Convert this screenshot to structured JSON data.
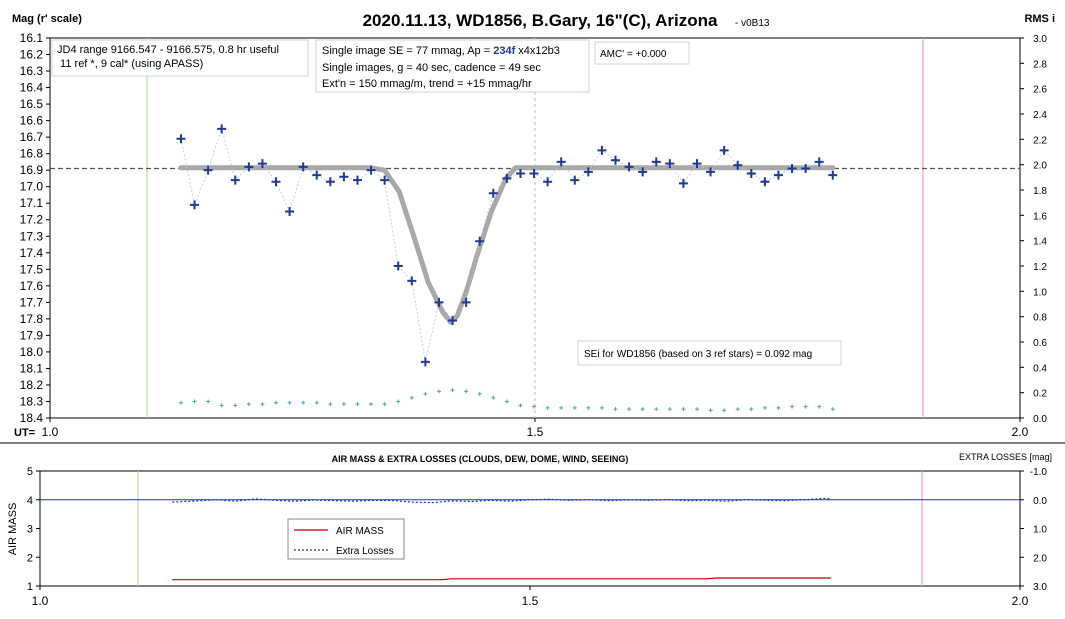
{
  "chart_data": [
    {
      "type": "scatter",
      "title": "2020.11.13, WD1856, B.Gary, 16\"(C), Arizona",
      "title_suffix": "- v0B13",
      "ylabel": "Mag (r' scale)",
      "y2label": "RMS i",
      "xlabel": "UT=",
      "xlim": [
        1.0,
        2.0
      ],
      "ylim": [
        16.1,
        18.4
      ],
      "y_inverted": true,
      "y2lim": [
        0,
        3.0
      ],
      "x_ticks": [
        {
          "v": 1.0,
          "label": "1.0"
        },
        {
          "v": 1.5,
          "label": "1.5"
        },
        {
          "v": 2.0,
          "label": "2.0"
        }
      ],
      "y_ticks": [
        "16.1",
        "16.2",
        "16.3",
        "16.4",
        "16.5",
        "16.6",
        "16.7",
        "16.8",
        "16.9",
        "17.0",
        "17.1",
        "17.2",
        "17.3",
        "17.4",
        "17.5",
        "17.6",
        "17.7",
        "17.8",
        "17.9",
        "18.0",
        "18.1",
        "18.2",
        "18.3",
        "18.4"
      ],
      "y2_ticks": [
        "0.0",
        "0.2",
        "0.4",
        "0.6",
        "0.8",
        "1.0",
        "1.2",
        "1.4",
        "1.6",
        "1.8",
        "2.0",
        "2.2",
        "2.4",
        "2.6",
        "2.8",
        "3.0"
      ],
      "vlines": [
        {
          "x": 1.1,
          "color": "#b7dba0"
        },
        {
          "x": 1.5,
          "color": "#c8c8c8",
          "dashed": true
        },
        {
          "x": 1.9,
          "color": "#f2a0a8"
        }
      ],
      "hline": {
        "y": 16.89,
        "color": "#555555",
        "dashed": true
      },
      "series": [
        {
          "kind": "magnitudes",
          "color": "#1f3a93",
          "x": [
            1.135,
            1.149,
            1.163,
            1.177,
            1.191,
            1.205,
            1.219,
            1.233,
            1.247,
            1.261,
            1.275,
            1.289,
            1.303,
            1.317,
            1.331,
            1.345,
            1.359,
            1.373,
            1.387,
            1.401,
            1.415,
            1.429,
            1.443,
            1.457,
            1.471,
            1.485,
            1.499,
            1.513,
            1.527,
            1.541,
            1.555,
            1.569,
            1.583,
            1.597,
            1.611,
            1.625,
            1.639,
            1.653,
            1.667,
            1.681,
            1.695,
            1.709,
            1.723,
            1.737,
            1.751,
            1.765,
            1.779,
            1.793,
            1.807
          ],
          "y": [
            16.71,
            17.11,
            16.9,
            16.65,
            16.96,
            16.88,
            16.86,
            16.97,
            17.15,
            16.88,
            16.93,
            16.97,
            16.94,
            16.96,
            16.9,
            16.96,
            17.48,
            17.57,
            18.06,
            17.7,
            17.81,
            17.7,
            17.33,
            17.04,
            16.95,
            16.92,
            16.92,
            16.97,
            16.85,
            16.96,
            16.91,
            16.78,
            16.84,
            16.88,
            16.91,
            16.85,
            16.86,
            16.98,
            16.86,
            16.91,
            16.78,
            16.87,
            16.92,
            16.97,
            16.93,
            16.89,
            16.89,
            16.85,
            16.93
          ]
        },
        {
          "kind": "model",
          "color": "#a8a8a8",
          "x": [
            1.135,
            1.33,
            1.345,
            1.36,
            1.375,
            1.39,
            1.405,
            1.413,
            1.42,
            1.43,
            1.44,
            1.455,
            1.47,
            1.48,
            1.807
          ],
          "y": [
            16.885,
            16.885,
            16.9,
            17.03,
            17.3,
            17.58,
            17.76,
            17.82,
            17.78,
            17.62,
            17.42,
            17.15,
            16.95,
            16.885,
            16.885
          ]
        },
        {
          "kind": "rms",
          "color": "#4aa6a6",
          "axis": "y2",
          "x": [
            1.135,
            1.149,
            1.163,
            1.177,
            1.191,
            1.205,
            1.219,
            1.233,
            1.247,
            1.261,
            1.275,
            1.289,
            1.303,
            1.317,
            1.331,
            1.345,
            1.359,
            1.373,
            1.387,
            1.401,
            1.415,
            1.429,
            1.443,
            1.457,
            1.471,
            1.485,
            1.499,
            1.513,
            1.527,
            1.541,
            1.555,
            1.569,
            1.583,
            1.597,
            1.611,
            1.625,
            1.639,
            1.653,
            1.667,
            1.681,
            1.695,
            1.709,
            1.723,
            1.737,
            1.751,
            1.765,
            1.779,
            1.793,
            1.807
          ],
          "y": [
            0.12,
            0.13,
            0.13,
            0.1,
            0.1,
            0.11,
            0.11,
            0.12,
            0.12,
            0.12,
            0.12,
            0.11,
            0.11,
            0.11,
            0.11,
            0.11,
            0.13,
            0.16,
            0.19,
            0.21,
            0.22,
            0.21,
            0.19,
            0.16,
            0.13,
            0.1,
            0.09,
            0.08,
            0.08,
            0.08,
            0.08,
            0.08,
            0.07,
            0.07,
            0.07,
            0.07,
            0.07,
            0.07,
            0.07,
            0.06,
            0.06,
            0.07,
            0.07,
            0.08,
            0.08,
            0.09,
            0.09,
            0.09,
            0.07
          ]
        }
      ],
      "annotations": {
        "jd_box": [
          "JD4 range 9166.547 - 9166.575, 0.8 hr useful",
          " 11 ref *, 9 cal* (using APASS)"
        ],
        "se_prefix": "Single image SE = 77 mmag, Ap = ",
        "se_ap": "234f",
        "se_suffix": " x4x12b3",
        "se_line2": "Single images, g = 40 sec, cadence = 49 sec",
        "se_line3": "Ext'n = 150 mmag/m, trend = +15 mmag/hr",
        "amc": "AMC' = +0.000",
        "sei": "SEi for WD1856 (based on 3 ref stars) = 0.092 mag"
      }
    },
    {
      "type": "line",
      "title": "AIR MASS & EXTRA LOSSES (CLOUDS, DEW, DOME, WIND, SEEING)",
      "ylabel": "AIR MASS",
      "y2label": "EXTRA LOSSES [mag]",
      "xlim": [
        1.0,
        2.0
      ],
      "ylim": [
        1,
        5
      ],
      "y2lim": [
        -1.0,
        3.0
      ],
      "x_ticks": [
        {
          "v": 1.0,
          "label": "1.0"
        },
        {
          "v": 1.5,
          "label": "1.5"
        },
        {
          "v": 2.0,
          "label": "2.0"
        }
      ],
      "y_ticks": [
        "1",
        "2",
        "3",
        "4",
        "5"
      ],
      "y2_ticks": [
        "-1.0",
        "0.0",
        "1.0",
        "2.0",
        "3.0"
      ],
      "vlines": [
        {
          "x": 1.1,
          "color": "#b7dba0"
        },
        {
          "x": 1.9,
          "color": "#f2a0a8"
        }
      ],
      "zero_line": {
        "y2": 0.0,
        "color": "#1f3a93"
      },
      "series": [
        {
          "name": "AIR MASS",
          "color": "#c00000",
          "axis": "y",
          "x": [
            1.135,
            1.2,
            1.3,
            1.41,
            1.42,
            1.5,
            1.6,
            1.68,
            1.69,
            1.807
          ],
          "y": [
            1.22,
            1.22,
            1.22,
            1.22,
            1.25,
            1.25,
            1.25,
            1.25,
            1.28,
            1.28
          ]
        },
        {
          "name": "Extra Losses",
          "color": "#1f3a93",
          "dashed": true,
          "axis": "y2",
          "x": [
            1.135,
            1.16,
            1.18,
            1.2,
            1.22,
            1.24,
            1.26,
            1.28,
            1.3,
            1.32,
            1.34,
            1.36,
            1.38,
            1.4,
            1.42,
            1.44,
            1.46,
            1.48,
            1.5,
            1.52,
            1.54,
            1.56,
            1.58,
            1.6,
            1.62,
            1.64,
            1.66,
            1.68,
            1.7,
            1.72,
            1.74,
            1.76,
            1.78,
            1.8,
            1.807
          ],
          "y": [
            0.08,
            0.04,
            0.0,
            0.05,
            -0.03,
            0.02,
            0.05,
            0.01,
            0.03,
            0.05,
            0.02,
            0.03,
            0.08,
            0.1,
            0.04,
            0.06,
            0.02,
            0.05,
            0.0,
            -0.02,
            0.02,
            0.0,
            0.03,
            0.01,
            0.02,
            0.0,
            0.03,
            0.02,
            0.05,
            0.0,
            0.02,
            0.03,
            0.0,
            -0.05,
            -0.03
          ]
        }
      ],
      "legend": [
        "AIR MASS",
        "Extra Losses"
      ]
    }
  ]
}
